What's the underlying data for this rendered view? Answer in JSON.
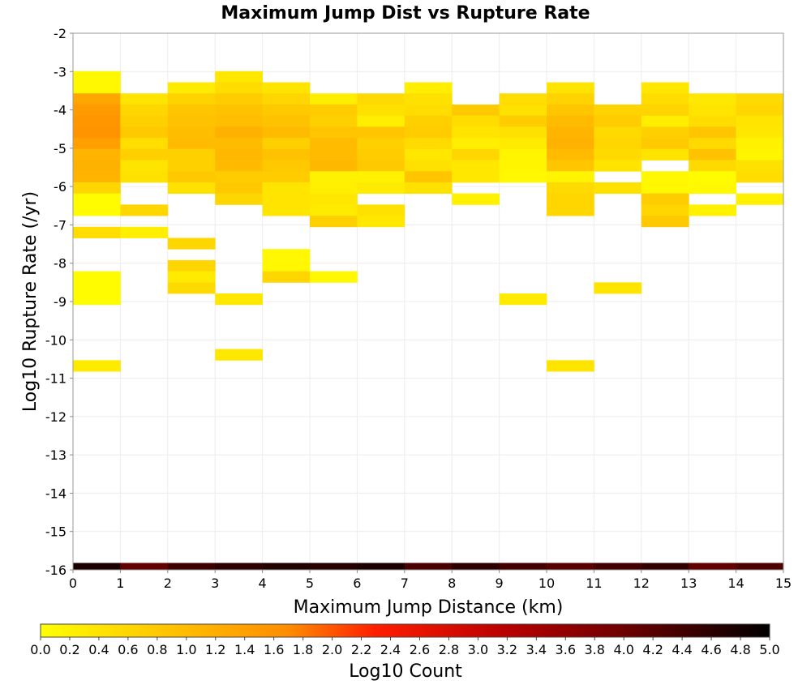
{
  "chart_data": {
    "type": "heatmap",
    "title": "Maximum Jump Dist vs Rupture Rate",
    "xlabel": "Maximum Jump Distance (km)",
    "ylabel": "Log10 Rupture Rate (/yr)",
    "colorbar_label": "Log10 Count",
    "xlim": [
      0,
      15
    ],
    "ylim": [
      -16,
      -2
    ],
    "x_ticks": [
      "0",
      "1",
      "2",
      "3",
      "4",
      "5",
      "6",
      "7",
      "8",
      "9",
      "10",
      "11",
      "12",
      "13",
      "14",
      "15"
    ],
    "y_ticks": [
      "-2",
      "-3",
      "-4",
      "-5",
      "-6",
      "-7",
      "-8",
      "-9",
      "-10",
      "-11",
      "-12",
      "-13",
      "-14",
      "-15",
      "-16"
    ],
    "colorbar_ticks": [
      "0.0",
      "0.2",
      "0.4",
      "0.6",
      "0.8",
      "1.0",
      "1.2",
      "1.4",
      "1.6",
      "1.8",
      "2.0",
      "2.2",
      "2.4",
      "2.6",
      "2.8",
      "3.0",
      "3.2",
      "3.4",
      "3.6",
      "3.8",
      "4.0",
      "4.2",
      "4.4",
      "4.6",
      "4.8",
      "5.0"
    ],
    "color_range": [
      0,
      5
    ],
    "x_bin_width": 1,
    "y_bin_height": 0.29,
    "bottom_row": {
      "y_start": -16.0,
      "values": [
        4.75,
        4.1,
        4.45,
        4.6,
        4.7,
        4.65,
        4.75,
        4.35,
        4.6,
        4.4,
        4.2,
        4.4,
        4.55,
        4.1,
        4.3
      ]
    },
    "columns": [
      {
        "x_start": 0,
        "cells": [
          [
            -3.28,
            0.1
          ],
          [
            -3.57,
            0.1
          ],
          [
            -3.86,
            1.3
          ],
          [
            -4.15,
            1.5
          ],
          [
            -4.44,
            1.55
          ],
          [
            -4.73,
            1.6
          ],
          [
            -5.02,
            1.4
          ],
          [
            -5.31,
            1.1
          ],
          [
            -5.6,
            1.15
          ],
          [
            -5.89,
            1.1
          ],
          [
            -6.18,
            0.6
          ],
          [
            -6.47,
            0.05
          ],
          [
            -6.76,
            0.05
          ],
          [
            -7.34,
            0.5
          ],
          [
            -8.5,
            0.05
          ],
          [
            -8.79,
            0.05
          ],
          [
            -9.08,
            0.05
          ],
          [
            -10.82,
            0.3
          ]
        ]
      },
      {
        "x_start": 1,
        "cells": [
          [
            -3.86,
            0.4
          ],
          [
            -4.15,
            0.6
          ],
          [
            -4.44,
            0.7
          ],
          [
            -4.73,
            0.8
          ],
          [
            -5.02,
            0.5
          ],
          [
            -5.31,
            0.7
          ],
          [
            -5.6,
            0.4
          ],
          [
            -5.89,
            0.45
          ],
          [
            -6.76,
            0.6
          ],
          [
            -7.34,
            0.25
          ]
        ]
      },
      {
        "x_start": 2,
        "cells": [
          [
            -3.57,
            0.3
          ],
          [
            -3.86,
            0.65
          ],
          [
            -4.15,
            0.85
          ],
          [
            -4.44,
            0.9
          ],
          [
            -4.73,
            0.95
          ],
          [
            -5.02,
            1.0
          ],
          [
            -5.31,
            0.7
          ],
          [
            -5.6,
            0.7
          ],
          [
            -5.89,
            0.8
          ],
          [
            -6.18,
            0.45
          ],
          [
            -7.63,
            0.6
          ],
          [
            -8.21,
            0.6
          ],
          [
            -8.5,
            0.3
          ],
          [
            -8.79,
            0.55
          ]
        ]
      },
      {
        "x_start": 3,
        "cells": [
          [
            -3.28,
            0.35
          ],
          [
            -3.57,
            0.5
          ],
          [
            -3.86,
            0.75
          ],
          [
            -4.15,
            0.9
          ],
          [
            -4.44,
            0.95
          ],
          [
            -4.73,
            1.15
          ],
          [
            -5.02,
            1.0
          ],
          [
            -5.31,
            1.05
          ],
          [
            -5.6,
            1.0
          ],
          [
            -5.89,
            0.75
          ],
          [
            -6.18,
            0.8
          ],
          [
            -6.47,
            0.6
          ],
          [
            -9.08,
            0.35
          ],
          [
            -10.53,
            0.35
          ]
        ]
      },
      {
        "x_start": 4,
        "cells": [
          [
            -3.57,
            0.4
          ],
          [
            -3.86,
            0.6
          ],
          [
            -4.15,
            0.8
          ],
          [
            -4.44,
            0.9
          ],
          [
            -4.73,
            1.0
          ],
          [
            -5.02,
            0.7
          ],
          [
            -5.31,
            0.9
          ],
          [
            -5.6,
            0.8
          ],
          [
            -5.89,
            0.75
          ],
          [
            -6.18,
            0.4
          ],
          [
            -6.47,
            0.4
          ],
          [
            -6.76,
            0.4
          ],
          [
            -7.92,
            0.1
          ],
          [
            -8.21,
            0.1
          ],
          [
            -8.5,
            0.6
          ]
        ]
      },
      {
        "x_start": 5,
        "cells": [
          [
            -3.86,
            0.25
          ],
          [
            -4.15,
            0.75
          ],
          [
            -4.44,
            0.7
          ],
          [
            -4.73,
            0.85
          ],
          [
            -5.02,
            1.0
          ],
          [
            -5.31,
            1.0
          ],
          [
            -5.6,
            1.05
          ],
          [
            -5.89,
            0.2
          ],
          [
            -6.18,
            0.25
          ],
          [
            -6.47,
            0.35
          ],
          [
            -6.76,
            0.3
          ],
          [
            -7.05,
            0.7
          ],
          [
            -8.5,
            0.1
          ]
        ]
      },
      {
        "x_start": 6,
        "cells": [
          [
            -3.86,
            0.55
          ],
          [
            -4.15,
            0.45
          ],
          [
            -4.44,
            0.25
          ],
          [
            -4.73,
            0.85
          ],
          [
            -5.02,
            0.7
          ],
          [
            -5.31,
            0.75
          ],
          [
            -5.6,
            0.8
          ],
          [
            -5.89,
            0.2
          ],
          [
            -6.18,
            0.3
          ],
          [
            -6.76,
            0.45
          ],
          [
            -7.05,
            0.35
          ]
        ]
      },
      {
        "x_start": 7,
        "cells": [
          [
            -3.57,
            0.25
          ],
          [
            -3.86,
            0.45
          ],
          [
            -4.15,
            0.5
          ],
          [
            -4.44,
            0.7
          ],
          [
            -4.73,
            0.75
          ],
          [
            -5.02,
            0.55
          ],
          [
            -5.31,
            0.35
          ],
          [
            -5.6,
            0.45
          ],
          [
            -5.89,
            0.85
          ],
          [
            -6.18,
            0.45
          ]
        ]
      },
      {
        "x_start": 8,
        "cells": [
          [
            -4.15,
            0.8
          ],
          [
            -4.44,
            0.5
          ],
          [
            -4.73,
            0.4
          ],
          [
            -5.02,
            0.25
          ],
          [
            -5.31,
            0.6
          ],
          [
            -5.6,
            0.35
          ],
          [
            -5.89,
            0.35
          ],
          [
            -6.47,
            0.2
          ]
        ]
      },
      {
        "x_start": 9,
        "cells": [
          [
            -3.86,
            0.5
          ],
          [
            -4.15,
            0.45
          ],
          [
            -4.44,
            0.75
          ],
          [
            -4.73,
            0.45
          ],
          [
            -5.02,
            0.3
          ],
          [
            -5.31,
            0.15
          ],
          [
            -5.6,
            0.15
          ],
          [
            -5.89,
            0.1
          ],
          [
            -9.08,
            0.3
          ]
        ]
      },
      {
        "x_start": 10,
        "cells": [
          [
            -3.57,
            0.4
          ],
          [
            -3.86,
            0.65
          ],
          [
            -4.15,
            0.85
          ],
          [
            -4.44,
            1.0
          ],
          [
            -4.73,
            1.1
          ],
          [
            -5.02,
            1.15
          ],
          [
            -5.31,
            1.0
          ],
          [
            -5.6,
            0.85
          ],
          [
            -5.89,
            0.15
          ],
          [
            -6.18,
            0.55
          ],
          [
            -6.47,
            0.6
          ],
          [
            -6.76,
            0.6
          ],
          [
            -10.82,
            0.4
          ]
        ]
      },
      {
        "x_start": 11,
        "cells": [
          [
            -4.15,
            0.65
          ],
          [
            -4.44,
            0.75
          ],
          [
            -4.73,
            0.55
          ],
          [
            -5.02,
            0.6
          ],
          [
            -5.31,
            0.55
          ],
          [
            -5.6,
            0.4
          ],
          [
            -6.18,
            0.45
          ],
          [
            -8.79,
            0.4
          ]
        ]
      },
      {
        "x_start": 12,
        "cells": [
          [
            -3.57,
            0.35
          ],
          [
            -3.86,
            0.5
          ],
          [
            -4.15,
            0.65
          ],
          [
            -4.44,
            0.25
          ],
          [
            -4.73,
            0.7
          ],
          [
            -5.02,
            0.8
          ],
          [
            -5.31,
            0.4
          ],
          [
            -5.89,
            0.1
          ],
          [
            -6.18,
            0.1
          ],
          [
            -6.47,
            0.75
          ],
          [
            -6.76,
            0.6
          ],
          [
            -7.05,
            0.8
          ]
        ]
      },
      {
        "x_start": 13,
        "cells": [
          [
            -3.86,
            0.35
          ],
          [
            -4.15,
            0.4
          ],
          [
            -4.44,
            0.5
          ],
          [
            -4.73,
            0.85
          ],
          [
            -5.02,
            0.55
          ],
          [
            -5.31,
            0.9
          ],
          [
            -5.6,
            0.55
          ],
          [
            -5.89,
            0.05
          ],
          [
            -6.18,
            0.1
          ],
          [
            -6.76,
            0.2
          ]
        ]
      },
      {
        "x_start": 14,
        "cells": [
          [
            -3.86,
            0.55
          ],
          [
            -4.15,
            0.6
          ],
          [
            -4.44,
            0.4
          ],
          [
            -4.73,
            0.35
          ],
          [
            -5.02,
            0.2
          ],
          [
            -5.31,
            0.15
          ],
          [
            -5.6,
            0.45
          ],
          [
            -5.89,
            0.5
          ],
          [
            -6.47,
            0.2
          ]
        ]
      }
    ]
  }
}
